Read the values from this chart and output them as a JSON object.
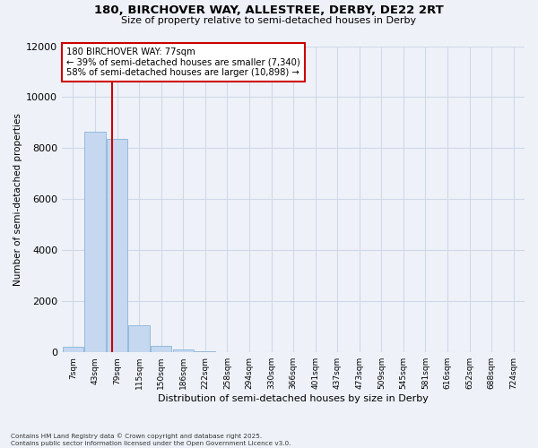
{
  "title_line1": "180, BIRCHOVER WAY, ALLESTREE, DERBY, DE22 2RT",
  "title_line2": "Size of property relative to semi-detached houses in Derby",
  "xlabel": "Distribution of semi-detached houses by size in Derby",
  "ylabel": "Number of semi-detached properties",
  "footnote": "Contains HM Land Registry data © Crown copyright and database right 2025.\nContains public sector information licensed under the Open Government Licence v3.0.",
  "bin_labels": [
    "7sqm",
    "43sqm",
    "79sqm",
    "115sqm",
    "150sqm",
    "186sqm",
    "222sqm",
    "258sqm",
    "294sqm",
    "330sqm",
    "366sqm",
    "401sqm",
    "437sqm",
    "473sqm",
    "509sqm",
    "545sqm",
    "581sqm",
    "616sqm",
    "652sqm",
    "688sqm",
    "724sqm"
  ],
  "bar_heights": [
    230,
    8650,
    8350,
    1050,
    270,
    110,
    40,
    0,
    0,
    0,
    0,
    0,
    0,
    0,
    0,
    0,
    0,
    0,
    0,
    0,
    0
  ],
  "bar_color": "#c5d8f0",
  "bar_edge_color": "#8ab4d8",
  "ylim": [
    0,
    12000
  ],
  "yticks": [
    0,
    2000,
    4000,
    6000,
    8000,
    10000,
    12000
  ],
  "property_label": "180 BIRCHOVER WAY: 77sqm",
  "pct_smaller": 39,
  "pct_larger": 58,
  "count_smaller": 7340,
  "count_larger": 10898,
  "vline_x": 1.77,
  "background_color": "#eef2f8",
  "grid_color": "#d0d8e8",
  "box_color": "#cc0000"
}
